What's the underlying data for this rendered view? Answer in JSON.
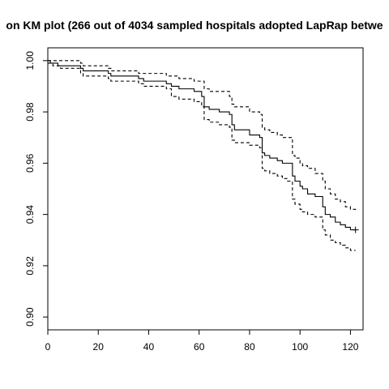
{
  "chart_data": {
    "type": "line",
    "title": "on KM plot (266 out of 4034 sampled hospitals adopted LapRap betwe",
    "xlabel": "",
    "ylabel": "",
    "xlim": [
      0,
      125
    ],
    "ylim": [
      0.895,
      1.005
    ],
    "x_ticks": [
      0,
      20,
      40,
      60,
      80,
      100,
      120
    ],
    "y_ticks": [
      0.9,
      0.92,
      0.94,
      0.96,
      0.98,
      1.0
    ],
    "x_tick_labels": [
      "0",
      "20",
      "40",
      "60",
      "80",
      "100",
      "120"
    ],
    "y_tick_labels": [
      "0.90",
      "0.92",
      "0.94",
      "0.96",
      "0.98",
      "1.00"
    ],
    "grid": false,
    "legend": "none",
    "series": [
      {
        "style": "solid",
        "color": "#000000",
        "points": [
          [
            0,
            1.0
          ],
          [
            1,
            0.999
          ],
          [
            4,
            0.998
          ],
          [
            13,
            0.997
          ],
          [
            14,
            0.996
          ],
          [
            24,
            0.995
          ],
          [
            25,
            0.994
          ],
          [
            36,
            0.993
          ],
          [
            38,
            0.992
          ],
          [
            47,
            0.991
          ],
          [
            49,
            0.99
          ],
          [
            52,
            0.989
          ],
          [
            58,
            0.988
          ],
          [
            61,
            0.986
          ],
          [
            62,
            0.982
          ],
          [
            64,
            0.981
          ],
          [
            68,
            0.98
          ],
          [
            72,
            0.979
          ],
          [
            73,
            0.975
          ],
          [
            74,
            0.973
          ],
          [
            80,
            0.971
          ],
          [
            84,
            0.97
          ],
          [
            85,
            0.964
          ],
          [
            86,
            0.963
          ],
          [
            88,
            0.962
          ],
          [
            91,
            0.961
          ],
          [
            93,
            0.96
          ],
          [
            95,
            0.96
          ],
          [
            97,
            0.955
          ],
          [
            98,
            0.953
          ],
          [
            100,
            0.951
          ],
          [
            101,
            0.95
          ],
          [
            103,
            0.948
          ],
          [
            106,
            0.947
          ],
          [
            109,
            0.943
          ],
          [
            110,
            0.94
          ],
          [
            112,
            0.939
          ],
          [
            114,
            0.937
          ],
          [
            116,
            0.936
          ],
          [
            118,
            0.935
          ],
          [
            120,
            0.934
          ],
          [
            122,
            0.934
          ]
        ]
      },
      {
        "style": "dashed",
        "color": "#000000",
        "points": [
          [
            0,
            1.0
          ],
          [
            2,
            1.0
          ],
          [
            5,
            1.0
          ],
          [
            13,
            0.999
          ],
          [
            14,
            0.998
          ],
          [
            24,
            0.997
          ],
          [
            25,
            0.996
          ],
          [
            36,
            0.995
          ],
          [
            38,
            0.995
          ],
          [
            47,
            0.994
          ],
          [
            49,
            0.994
          ],
          [
            52,
            0.993
          ],
          [
            58,
            0.992
          ],
          [
            61,
            0.992
          ],
          [
            62,
            0.989
          ],
          [
            64,
            0.988
          ],
          [
            68,
            0.988
          ],
          [
            72,
            0.986
          ],
          [
            73,
            0.983
          ],
          [
            74,
            0.982
          ],
          [
            80,
            0.98
          ],
          [
            84,
            0.979
          ],
          [
            85,
            0.974
          ],
          [
            86,
            0.973
          ],
          [
            88,
            0.972
          ],
          [
            91,
            0.971
          ],
          [
            93,
            0.97
          ],
          [
            95,
            0.97
          ],
          [
            97,
            0.963
          ],
          [
            98,
            0.962
          ],
          [
            100,
            0.96
          ],
          [
            101,
            0.959
          ],
          [
            103,
            0.958
          ],
          [
            106,
            0.956
          ],
          [
            109,
            0.953
          ],
          [
            110,
            0.95
          ],
          [
            112,
            0.948
          ],
          [
            114,
            0.946
          ],
          [
            116,
            0.945
          ],
          [
            118,
            0.943
          ],
          [
            120,
            0.942
          ],
          [
            122,
            0.941
          ]
        ]
      },
      {
        "style": "dashed",
        "color": "#000000",
        "points": [
          [
            0,
            0.999
          ],
          [
            2,
            0.998
          ],
          [
            5,
            0.997
          ],
          [
            13,
            0.995
          ],
          [
            14,
            0.994
          ],
          [
            24,
            0.993
          ],
          [
            25,
            0.992
          ],
          [
            36,
            0.991
          ],
          [
            38,
            0.99
          ],
          [
            47,
            0.989
          ],
          [
            49,
            0.986
          ],
          [
            52,
            0.985
          ],
          [
            58,
            0.984
          ],
          [
            61,
            0.982
          ],
          [
            62,
            0.977
          ],
          [
            64,
            0.976
          ],
          [
            68,
            0.975
          ],
          [
            72,
            0.974
          ],
          [
            73,
            0.969
          ],
          [
            74,
            0.968
          ],
          [
            80,
            0.967
          ],
          [
            84,
            0.966
          ],
          [
            85,
            0.958
          ],
          [
            86,
            0.957
          ],
          [
            88,
            0.956
          ],
          [
            91,
            0.955
          ],
          [
            93,
            0.954
          ],
          [
            95,
            0.953
          ],
          [
            97,
            0.946
          ],
          [
            98,
            0.944
          ],
          [
            100,
            0.942
          ],
          [
            101,
            0.941
          ],
          [
            103,
            0.94
          ],
          [
            106,
            0.939
          ],
          [
            109,
            0.934
          ],
          [
            110,
            0.932
          ],
          [
            112,
            0.93
          ],
          [
            114,
            0.929
          ],
          [
            116,
            0.928
          ],
          [
            118,
            0.927
          ],
          [
            120,
            0.926
          ],
          [
            122,
            0.926
          ]
        ]
      }
    ],
    "censor_marks": [
      {
        "x": 122,
        "y": 0.934
      }
    ]
  }
}
